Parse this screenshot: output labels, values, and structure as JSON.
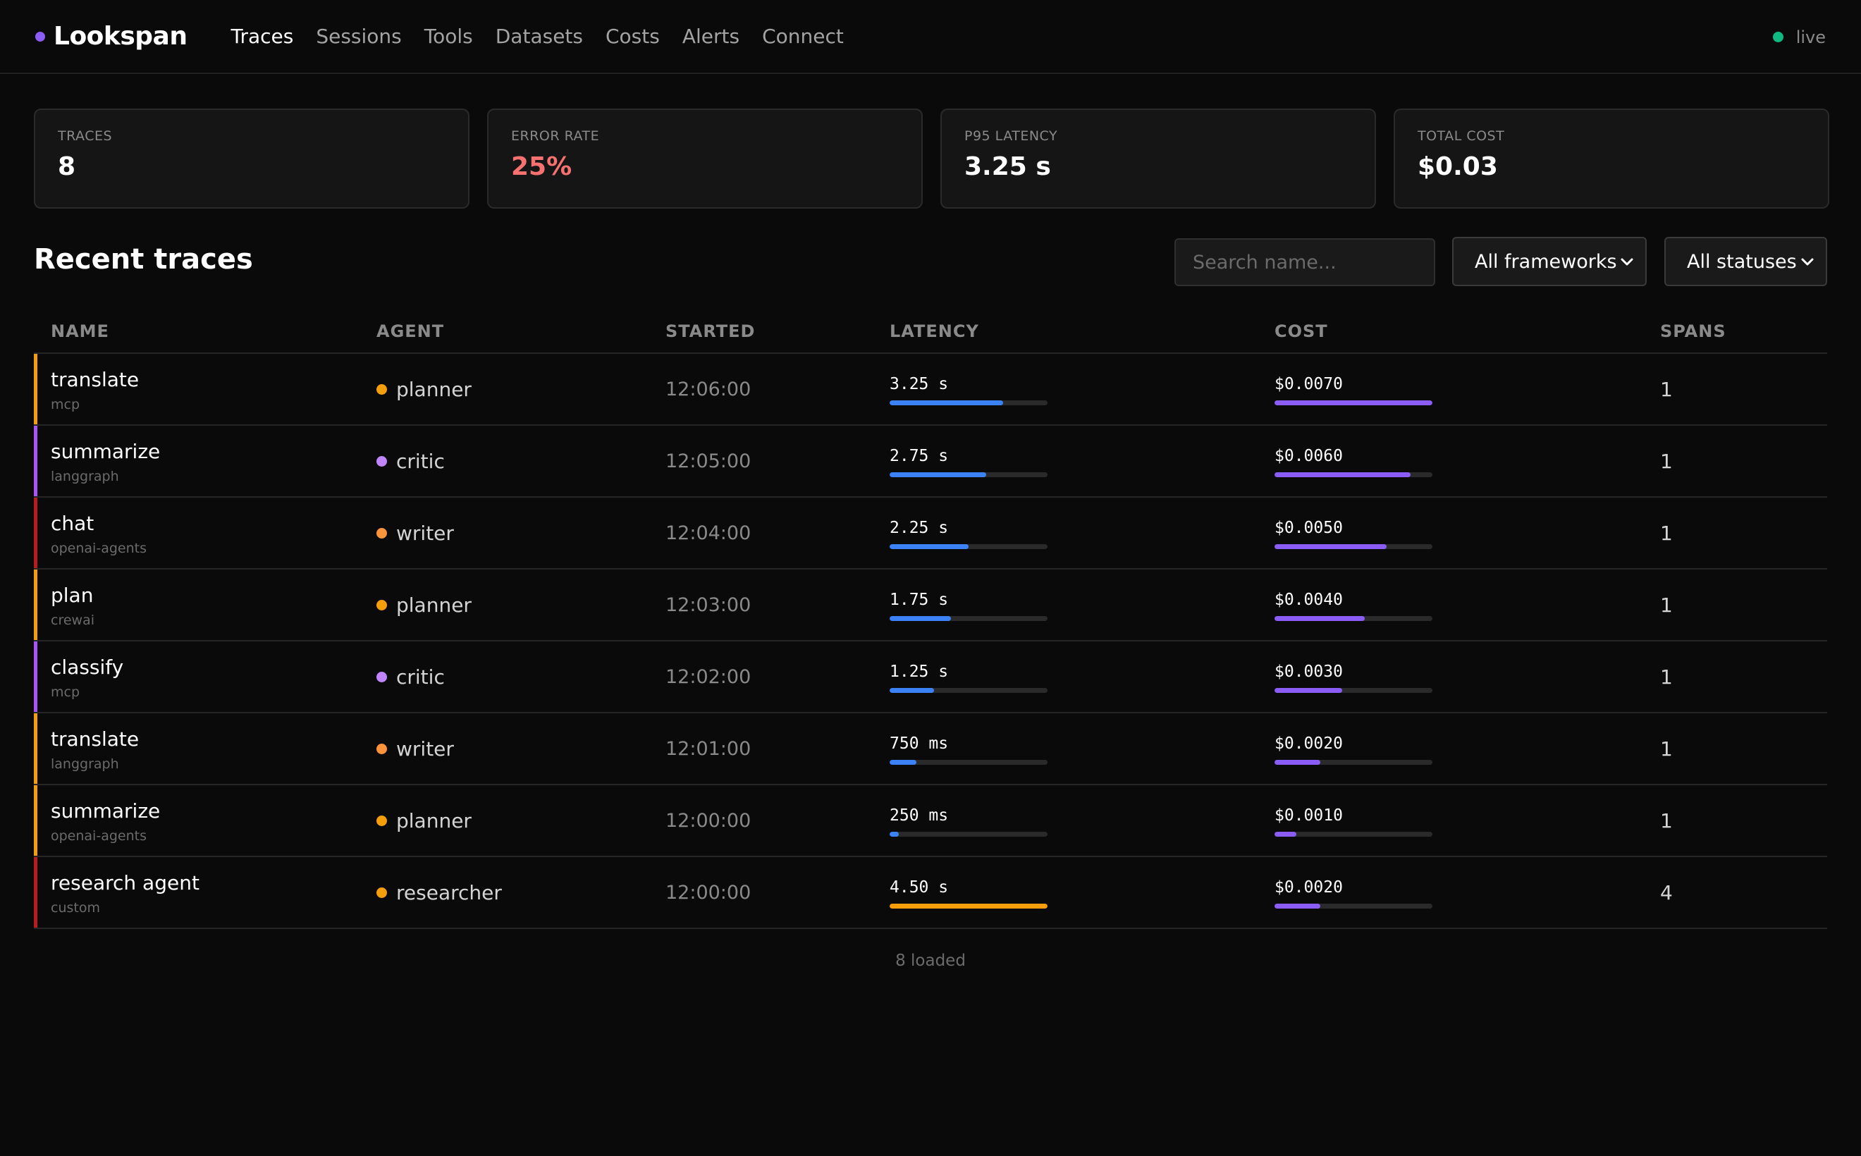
{
  "header": {
    "brand": "Lookspan",
    "nav": [
      {
        "label": "Traces",
        "active": true
      },
      {
        "label": "Sessions",
        "active": false
      },
      {
        "label": "Tools",
        "active": false
      },
      {
        "label": "Datasets",
        "active": false
      },
      {
        "label": "Costs",
        "active": false
      },
      {
        "label": "Alerts",
        "active": false
      },
      {
        "label": "Connect",
        "active": false
      }
    ],
    "status": "live"
  },
  "stats": [
    {
      "label": "TRACES",
      "value": "8"
    },
    {
      "label": "ERROR RATE",
      "value": "25%"
    },
    {
      "label": "P95 LATENCY",
      "value": "3.25 s"
    },
    {
      "label": "TOTAL COST",
      "value": "$0.03"
    }
  ],
  "traces": {
    "title": "Recent traces",
    "search_placeholder": "Search name...",
    "framework_filter": "All frameworks",
    "status_filter": "All statuses",
    "columns": [
      "NAME",
      "AGENT",
      "STARTED",
      "LATENCY",
      "COST",
      "SPANS"
    ],
    "rows": [
      {
        "name": "translate",
        "framework": "mcp",
        "agent": "planner",
        "started": "12:06:00",
        "latency": "3.25 s",
        "latency_frac": 0.72,
        "cost": "$0.0070",
        "cost_frac": 1.0,
        "spans": "1",
        "status": "warning"
      },
      {
        "name": "summarize",
        "framework": "langgraph",
        "agent": "critic",
        "started": "12:05:00",
        "latency": "2.75 s",
        "latency_frac": 0.61,
        "cost": "$0.0060",
        "cost_frac": 0.86,
        "spans": "1",
        "status": "ok"
      },
      {
        "name": "chat",
        "framework": "openai-agents",
        "agent": "writer",
        "started": "12:04:00",
        "latency": "2.25 s",
        "latency_frac": 0.5,
        "cost": "$0.0050",
        "cost_frac": 0.71,
        "spans": "1",
        "status": "error"
      },
      {
        "name": "plan",
        "framework": "crewai",
        "agent": "planner",
        "started": "12:03:00",
        "latency": "1.75 s",
        "latency_frac": 0.39,
        "cost": "$0.0040",
        "cost_frac": 0.57,
        "spans": "1",
        "status": "warning"
      },
      {
        "name": "classify",
        "framework": "mcp",
        "agent": "critic",
        "started": "12:02:00",
        "latency": "1.25 s",
        "latency_frac": 0.28,
        "cost": "$0.0030",
        "cost_frac": 0.43,
        "spans": "1",
        "status": "ok"
      },
      {
        "name": "translate",
        "framework": "langgraph",
        "agent": "writer",
        "started": "12:01:00",
        "latency": "750 ms",
        "latency_frac": 0.17,
        "cost": "$0.0020",
        "cost_frac": 0.29,
        "spans": "1",
        "status": "warning"
      },
      {
        "name": "summarize",
        "framework": "openai-agents",
        "agent": "planner",
        "started": "12:00:00",
        "latency": "250 ms",
        "latency_frac": 0.06,
        "cost": "$0.0010",
        "cost_frac": 0.14,
        "spans": "1",
        "status": "warning"
      },
      {
        "name": "research agent",
        "framework": "custom",
        "agent": "researcher",
        "started": "12:00:00",
        "latency": "4.50 s",
        "latency_frac": 1.0,
        "cost": "$0.0020",
        "cost_frac": 0.29,
        "spans": "4",
        "status": "error"
      }
    ],
    "footer": "8 loaded"
  },
  "colors": {
    "accent_purple": "#8b5cf6",
    "latency_bar": "#3b82f6",
    "latency_bar_max": "#f59e0b",
    "cost_bar": "#8b5cf6",
    "error": "#f87171",
    "live": "#10b981",
    "status_warning": "#f59e0b",
    "status_ok": "#a855f7",
    "status_error": "#b91c1c",
    "agent_planner": "#f59e0b",
    "agent_critic": "#c084fc",
    "agent_writer": "#fb923c",
    "agent_researcher": "#f59e0b"
  },
  "icons": {
    "select_chevron": "chevron-down-icon",
    "brand_dot": "brand-dot-icon",
    "live_dot": "live-status-dot"
  }
}
